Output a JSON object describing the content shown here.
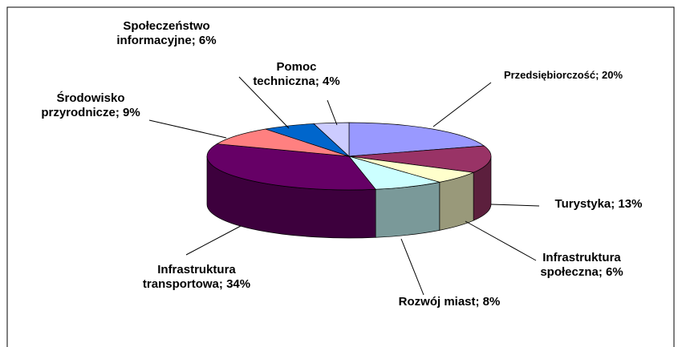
{
  "chart_data": {
    "type": "pie3d",
    "labels": [
      "Przedsiębiorczość; 20%",
      "Turystyka; 13%",
      "Infrastruktura społeczna; 6%",
      "Rozwój miast; 8%",
      "Infrastruktura transportowa; 34%",
      "Środowisko przyrodnicze; 9%",
      "Społeczeństwo informacyjne; 6%",
      "Pomoc techniczna; 4%"
    ],
    "values": [
      20,
      13,
      6,
      8,
      34,
      9,
      6,
      4
    ],
    "colors": [
      "#9999ff",
      "#993366",
      "#ffffcc",
      "#ccffff",
      "#660066",
      "#ff8080",
      "#0066cc",
      "#ccccff"
    ]
  }
}
